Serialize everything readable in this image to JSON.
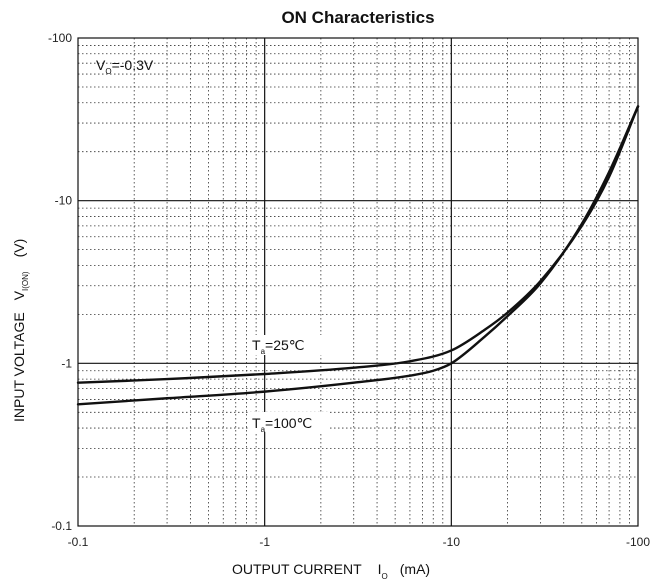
{
  "chart_data": {
    "type": "line",
    "title": "ON Characteristics",
    "xlabel": {
      "main": "OUTPUT CURRENT",
      "symbol": "I",
      "subscript": "O",
      "unit": "(mA)"
    },
    "ylabel": {
      "main": "INPUT VOLTAGE",
      "symbol": "V",
      "subscript": "I(ON)",
      "unit": "(V)"
    },
    "xscale": "log",
    "yscale": "log",
    "xlim": [
      -0.1,
      -100
    ],
    "ylim": [
      -0.1,
      -100
    ],
    "grid": true,
    "x_ticks": [
      "-0.1",
      "-1",
      "-10",
      "-100"
    ],
    "y_ticks": [
      "-100",
      "-10",
      "-1",
      "-0.1"
    ],
    "condition": {
      "symbol": "V",
      "subscript": "O",
      "value": "=-0.3V"
    },
    "series": [
      {
        "name": "25℃",
        "label": {
          "symbol": "T",
          "subscript": "a",
          "value": "=25℃"
        },
        "x": [
          -0.1,
          -0.3,
          -1,
          -3,
          -6,
          -10,
          -15,
          -20,
          -30,
          -50,
          -70,
          -100
        ],
        "y": [
          -0.76,
          -0.8,
          -0.86,
          -0.94,
          -1.03,
          -1.2,
          -1.6,
          -2.05,
          -3.2,
          -7.0,
          -14.0,
          -38.0
        ]
      },
      {
        "name": "100℃",
        "label": {
          "symbol": "T",
          "subscript": "a",
          "value": "=100℃"
        },
        "x": [
          -0.1,
          -0.3,
          -1,
          -3,
          -6,
          -8,
          -10,
          -15,
          -20,
          -30,
          -50,
          -70,
          -100
        ],
        "y": [
          -0.56,
          -0.61,
          -0.67,
          -0.76,
          -0.84,
          -0.9,
          -1.0,
          -1.45,
          -1.95,
          -3.1,
          -7.2,
          -15.0,
          -38.0
        ]
      }
    ]
  }
}
